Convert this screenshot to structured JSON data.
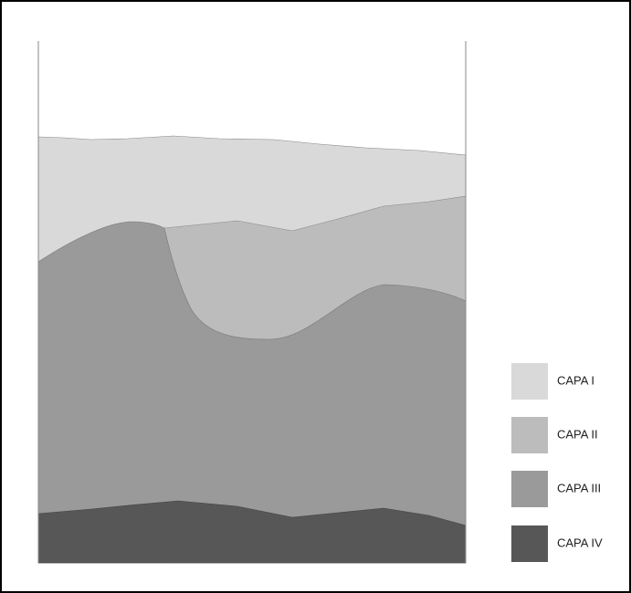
{
  "legend": [
    {
      "label": "CAPA I"
    },
    {
      "label": "CAPA II"
    },
    {
      "label": "CAPA III"
    },
    {
      "label": "CAPA IV"
    }
  ]
}
